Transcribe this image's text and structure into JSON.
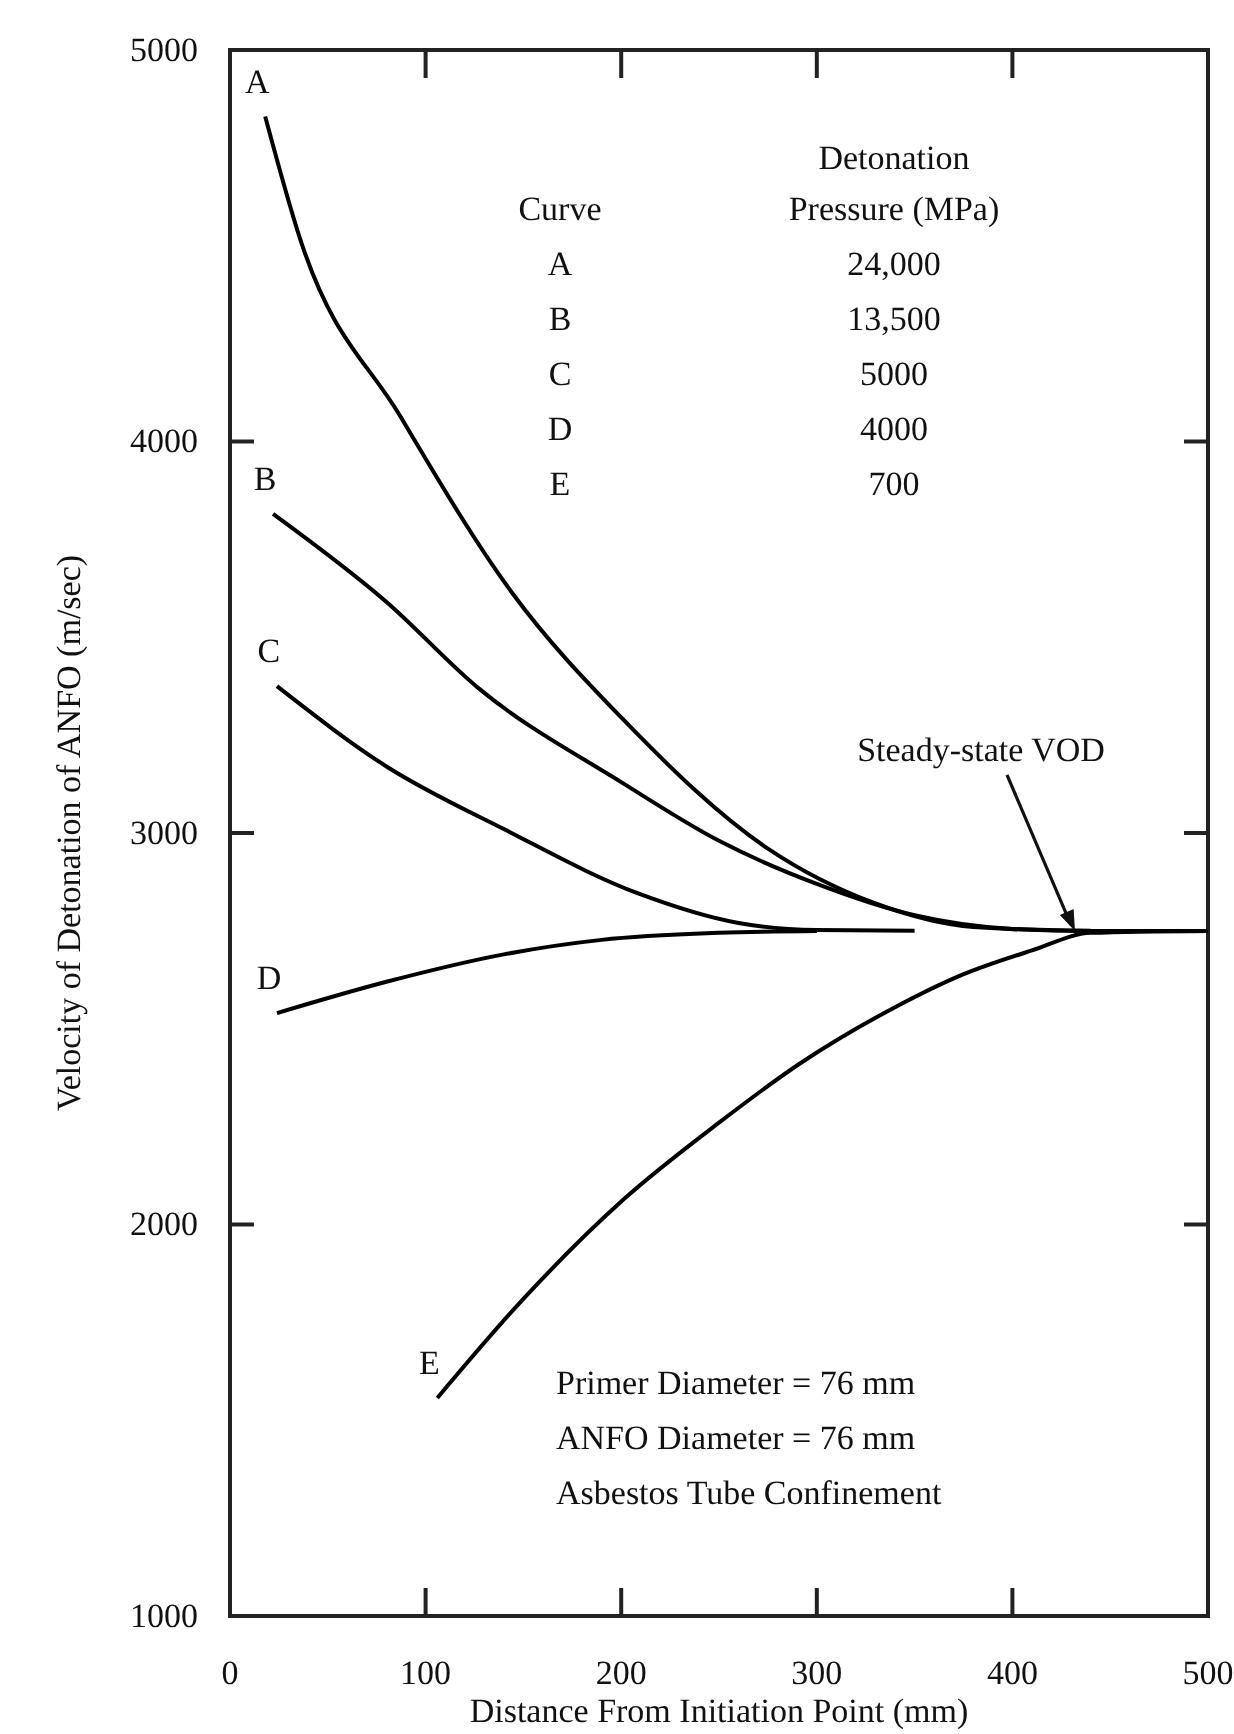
{
  "chart_data": {
    "type": "line",
    "xlabel": "Distance From Initiation Point (mm)",
    "ylabel": "Velocity of Detonation of ANFO (m/sec)",
    "xlim": [
      0,
      500
    ],
    "ylim": [
      1000,
      5000
    ],
    "xticks": [
      0,
      100,
      200,
      300,
      400,
      500
    ],
    "yticks": [
      1000,
      2000,
      3000,
      4000,
      5000
    ],
    "grid": false,
    "legend": false,
    "marker": "none",
    "line_style": "solid",
    "series": [
      {
        "name": "A",
        "color": "#000000",
        "x": [
          18,
          36,
          87,
          144,
          201,
          275,
          330,
          380,
          440,
          500
        ],
        "values": [
          4830,
          4515,
          4065,
          3615,
          3290,
          2960,
          2820,
          2760,
          2750,
          2750
        ]
      },
      {
        "name": "B",
        "color": "#000000",
        "x": [
          22,
          80,
          127,
          200,
          250,
          300,
          350,
          400,
          440
        ],
        "values": [
          3815,
          3590,
          3370,
          3130,
          2980,
          2870,
          2790,
          2755,
          2750
        ]
      },
      {
        "name": "C",
        "color": "#000000",
        "x": [
          24,
          80,
          140,
          209,
          260,
          300,
          350
        ],
        "values": [
          3375,
          3170,
          3010,
          2845,
          2770,
          2752,
          2750
        ]
      },
      {
        "name": "D",
        "color": "#000000",
        "x": [
          24,
          80,
          140,
          190,
          250,
          300
        ],
        "values": [
          2540,
          2620,
          2690,
          2727,
          2745,
          2750
        ]
      },
      {
        "name": "E",
        "color": "#000000",
        "x": [
          106,
          150,
          201,
          250,
          291,
          340,
          373,
          410,
          440,
          500
        ],
        "values": [
          1557,
          1810,
          2063,
          2260,
          2410,
          2555,
          2635,
          2700,
          2745,
          2750
        ]
      }
    ],
    "annotations": [
      "Curve",
      "Detonation Pressure (MPa)",
      "24,000",
      "13,500",
      "5000",
      "4000",
      "700",
      {
        "text": "Steady-state VOD",
        "x": 432,
        "y": 2750
      },
      "Primer Diameter = 76 mm",
      "ANFO Diameter = 76 mm",
      "Asbestos Tube Confinement"
    ]
  }
}
